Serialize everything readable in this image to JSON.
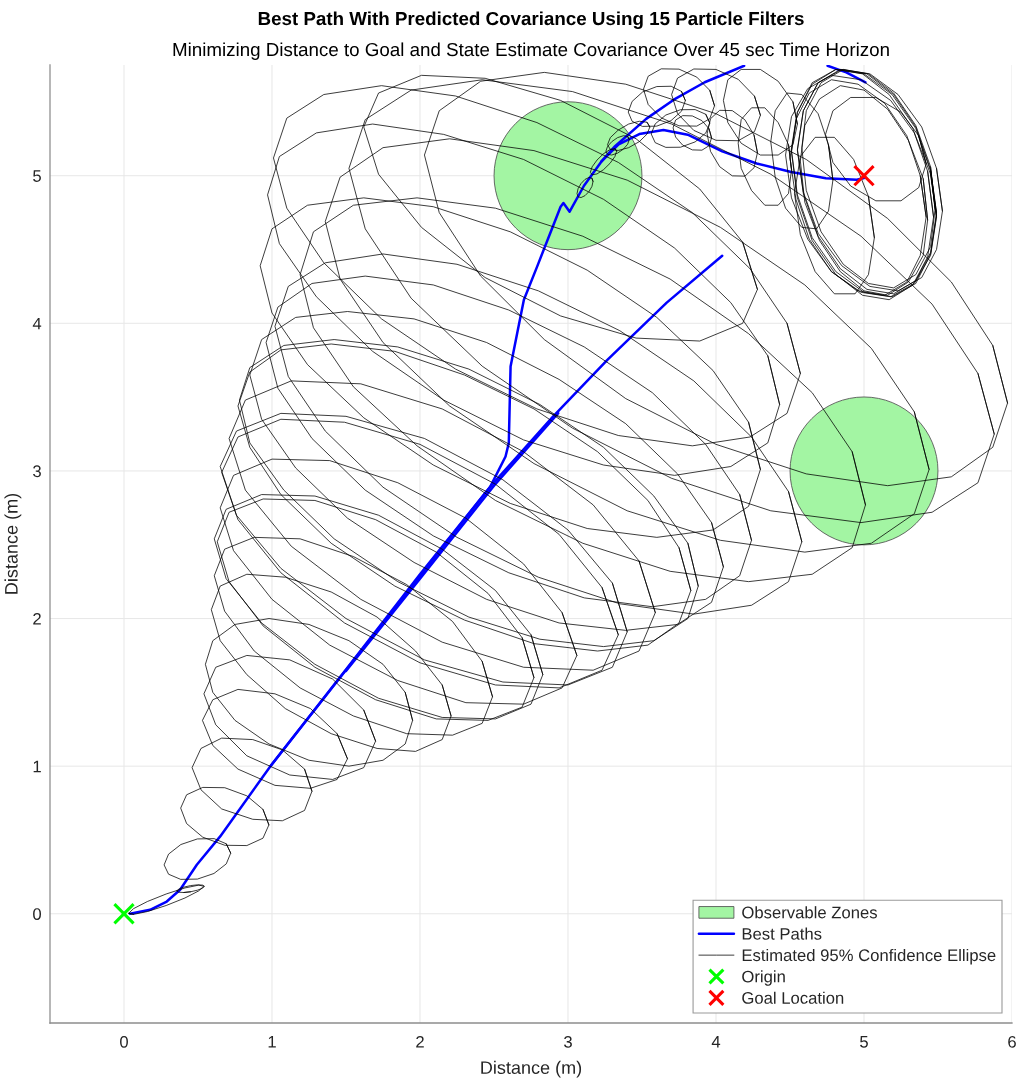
{
  "chart_data": {
    "type": "line",
    "title": "Best Path With Predicted Covariance Using 15 Particle Filters",
    "subtitle": "Minimizing Distance to Goal and State Estimate Covariance Over 45 sec Time Horizon",
    "xlabel": "Distance (m)",
    "ylabel": "Distance (m)",
    "xlim": [
      -0.5,
      6
    ],
    "ylim": [
      -0.74,
      5.75
    ],
    "xticks": [
      0,
      1,
      2,
      3,
      4,
      5,
      6
    ],
    "yticks": [
      0,
      1,
      2,
      3,
      4,
      5
    ],
    "grid": true,
    "legend": "bottom right",
    "series": [
      {
        "type": "bubble",
        "name": "Observable Zones",
        "color": "#a3f5a3",
        "x": [
          3,
          5
        ],
        "values": [
          5,
          3
        ],
        "sizes": [
          1,
          1
        ]
      },
      {
        "name": "Best Paths",
        "color": "#0000ff",
        "x": [
          0.04,
          0.176,
          0.289,
          0.379,
          0.492,
          0.65,
          0.988,
          1.5,
          2.0,
          2.476,
          2.578,
          2.6,
          2.612,
          2.657,
          2.702,
          2.792,
          2.95,
          2.969,
          3.011,
          3.108,
          3.225,
          3.342,
          3.482,
          3.645,
          3.809,
          4.042,
          4.275,
          4.508,
          4.742,
          4.952,
          5.0
        ],
        "values": [
          0.0,
          0.027,
          0.083,
          0.163,
          0.332,
          0.524,
          0.998,
          1.651,
          2.288,
          2.895,
          3.098,
          3.189,
          3.708,
          3.934,
          4.16,
          4.386,
          4.79,
          4.815,
          4.756,
          4.932,
          5.095,
          5.212,
          5.282,
          5.31,
          5.278,
          5.165,
          5.083,
          5.025,
          4.983,
          4.973,
          4.985
        ]
      },
      {
        "color": "#0000ff",
        "x": [
          3.225,
          3.318,
          3.528,
          3.715,
          3.924,
          4.19
        ],
        "values": [
          5.095,
          5.2,
          5.385,
          5.515,
          5.633,
          5.745
        ]
      },
      {
        "color": "#0000ff",
        "x": [
          4.754,
          4.88,
          5.01
        ],
        "values": [
          5.745,
          5.7,
          5.633
        ]
      },
      {
        "color": "#0000ff",
        "x": [
          0.988,
          1.5,
          2.0,
          2.476,
          2.9,
          3.266,
          3.667,
          4.042
        ],
        "values": [
          0.998,
          1.655,
          2.3,
          2.895,
          3.37,
          3.753,
          4.14,
          4.458
        ]
      },
      {
        "color": "#0000ff",
        "x": [
          1.5,
          2.0,
          2.5,
          2.934
        ],
        "values": [
          1.645,
          2.27,
          2.9,
          3.392
        ]
      },
      {
        "name": "Estimated 95% Confidence Ellipse",
        "color": "#000000",
        "x": [
          0.031,
          0.065,
          0.158,
          0.285,
          0.412,
          0.505,
          0.539,
          0.505,
          0.412,
          0.285,
          0.158,
          0.065,
          0.031,
          0.065
        ],
        "values": [
          0.003,
          -0.004,
          0.015,
          0.056,
          0.107,
          0.155,
          0.187,
          0.194,
          0.175,
          0.134,
          0.083,
          0.035,
          0.003,
          -0.004
        ]
      },
      {
        "color": "#000000",
        "x": [
          0.403,
          0.45,
          0.497,
          0.531,
          0.544,
          0.531,
          0.497,
          0.45,
          0.403,
          0.369,
          0.356,
          0.369,
          0.403,
          0.45
        ],
        "values": [
          0.144,
          0.149,
          0.16,
          0.173,
          0.186,
          0.194,
          0.196,
          0.191,
          0.18,
          0.167,
          0.154,
          0.146,
          0.144,
          0.149
        ]
      },
      {
        "color": "#000000",
        "x": [
          0.721,
          0.691,
          0.609,
          0.496,
          0.384,
          0.301,
          0.271,
          0.301,
          0.383,
          0.496,
          0.608,
          0.691,
          0.721,
          0.691
        ],
        "values": [
          0.411,
          0.474,
          0.509,
          0.507,
          0.469,
          0.404,
          0.331,
          0.268,
          0.233,
          0.235,
          0.273,
          0.338,
          0.411,
          0.474
        ]
      },
      {
        "color": "#000000",
        "x": [
          0.979,
          0.939,
          0.83,
          0.681,
          0.532,
          0.423,
          0.383,
          0.423,
          0.532,
          0.681,
          0.83,
          0.939,
          0.979,
          0.939
        ],
        "values": [
          0.602,
          0.707,
          0.799,
          0.854,
          0.856,
          0.806,
          0.716,
          0.611,
          0.519,
          0.464,
          0.462,
          0.512,
          0.602,
          0.707
        ]
      },
      {
        "color": "#000000",
        "x": [
          1.27,
          1.22,
          1.07,
          0.87,
          0.66,
          0.52,
          0.46,
          0.52,
          0.66,
          0.87,
          1.07,
          1.22,
          1.27,
          1.22
        ],
        "values": [
          0.83,
          0.98,
          1.11,
          1.18,
          1.19,
          1.12,
          0.99,
          0.84,
          0.71,
          0.64,
          0.63,
          0.7,
          0.83,
          0.98
        ]
      },
      {
        "color": "#000000",
        "x": [
          1.51,
          1.44,
          1.26,
          1.02,
          0.77,
          0.6,
          0.53,
          0.6,
          0.77,
          1.02,
          1.26,
          1.44,
          1.51,
          1.44
        ],
        "values": [
          1.05,
          1.22,
          1.39,
          1.49,
          1.52,
          1.45,
          1.31,
          1.14,
          0.98,
          0.87,
          0.85,
          0.91,
          1.05,
          1.22
        ]
      },
      {
        "color": "#000000",
        "x": [
          1.7,
          1.62,
          1.41,
          1.12,
          0.83,
          0.62,
          0.54,
          0.62,
          0.83,
          1.12,
          1.41,
          1.62,
          1.7,
          1.62
        ],
        "values": [
          1.17,
          1.38,
          1.59,
          1.72,
          1.75,
          1.67,
          1.49,
          1.28,
          1.07,
          0.94,
          0.91,
          0.99,
          1.17,
          1.38
        ]
      },
      {
        "color": "#000000",
        "x": [
          1.95,
          1.9,
          1.75,
          1.52,
          1.25,
          0.98,
          0.75,
          0.6,
          0.55,
          0.6,
          0.75,
          0.98,
          1.25,
          1.52,
          1.75,
          1.9,
          1.95,
          1.9
        ],
        "values": [
          1.31,
          1.5,
          1.69,
          1.85,
          1.96,
          2.0,
          1.96,
          1.85,
          1.69,
          1.5,
          1.31,
          1.15,
          1.04,
          1.0,
          1.04,
          1.15,
          1.31,
          1.5
        ]
      },
      {
        "color": "#000000",
        "x": [
          2.21,
          2.15,
          1.97,
          1.71,
          1.4,
          1.09,
          0.83,
          0.65,
          0.59,
          0.65,
          0.83,
          1.09,
          1.4,
          1.71,
          1.97,
          2.15,
          2.21,
          2.15
        ],
        "values": [
          1.34,
          1.55,
          1.78,
          2.01,
          2.18,
          2.28,
          2.3,
          2.22,
          2.06,
          1.85,
          1.62,
          1.39,
          1.22,
          1.12,
          1.1,
          1.18,
          1.34,
          1.55
        ]
      },
      {
        "color": "#000000",
        "x": [
          2.49,
          2.42,
          2.22,
          1.91,
          1.55,
          1.19,
          0.88,
          0.68,
          0.61,
          0.68,
          0.88,
          1.19,
          1.55,
          1.91,
          2.22,
          2.42,
          2.49,
          2.42
        ],
        "values": [
          1.47,
          1.71,
          1.98,
          2.23,
          2.42,
          2.54,
          2.55,
          2.47,
          2.29,
          2.05,
          1.78,
          1.53,
          1.34,
          1.22,
          1.21,
          1.29,
          1.47,
          1.71
        ]
      },
      {
        "color": "#000000",
        "x": [
          2.77,
          2.69,
          2.46,
          2.11,
          1.7,
          1.29,
          0.94,
          0.71,
          0.63,
          0.71,
          0.94,
          1.29,
          1.7,
          2.11,
          2.46,
          2.69,
          2.77,
          2.69
        ],
        "values": [
          1.6,
          1.87,
          2.17,
          2.45,
          2.67,
          2.8,
          2.81,
          2.72,
          2.52,
          2.25,
          1.95,
          1.67,
          1.45,
          1.32,
          1.31,
          1.4,
          1.6,
          1.87
        ]
      },
      {
        "color": "#000000",
        "x": [
          2.83,
          2.75,
          2.51,
          2.15,
          1.72,
          1.29,
          0.93,
          0.69,
          0.61,
          0.69,
          0.93,
          1.29,
          1.72,
          2.15,
          2.51,
          2.75,
          2.83,
          2.75
        ],
        "values": [
          1.62,
          1.89,
          2.19,
          2.47,
          2.7,
          2.83,
          2.84,
          2.74,
          2.54,
          2.27,
          1.97,
          1.69,
          1.46,
          1.33,
          1.32,
          1.42,
          1.62,
          1.89
        ]
      },
      {
        "color": "#000000",
        "x": [
          3.06,
          2.96,
          2.7,
          2.31,
          1.85,
          1.39,
          1.0,
          0.74,
          0.65,
          0.74,
          1.0,
          1.39,
          1.85,
          2.31,
          2.7,
          2.96,
          3.06,
          2.96
        ],
        "values": [
          1.75,
          2.04,
          2.37,
          2.68,
          2.92,
          3.07,
          3.08,
          2.97,
          2.75,
          2.46,
          2.13,
          1.82,
          1.58,
          1.43,
          1.42,
          1.53,
          1.75,
          2.04
        ]
      },
      {
        "color": "#000000",
        "x": [
          3.34,
          3.23,
          2.94,
          2.51,
          2.0,
          1.49,
          1.06,
          0.77,
          0.66,
          0.77,
          1.06,
          1.49,
          2.0,
          2.51,
          2.94,
          3.23,
          3.34,
          3.23
        ],
        "values": [
          1.89,
          2.21,
          2.57,
          2.91,
          3.18,
          3.33,
          3.35,
          3.23,
          2.99,
          2.67,
          2.31,
          1.97,
          1.7,
          1.55,
          1.53,
          1.65,
          1.89,
          2.21
        ]
      },
      {
        "color": "#000000",
        "x": [
          3.4,
          3.3,
          3.0,
          2.56,
          2.03,
          1.5,
          1.06,
          0.76,
          0.65,
          0.76,
          1.06,
          1.5,
          2.03,
          2.56,
          3.0,
          3.3,
          3.4,
          3.3
        ],
        "values": [
          1.91,
          2.24,
          2.6,
          2.94,
          3.22,
          3.37,
          3.39,
          3.27,
          3.03,
          2.7,
          2.34,
          2.0,
          1.72,
          1.57,
          1.55,
          1.67,
          1.91,
          2.24
        ]
      },
      {
        "color": "#000000",
        "x": [
          3.59,
          3.48,
          3.17,
          2.7,
          2.15,
          1.6,
          1.13,
          0.82,
          0.71,
          0.82,
          1.13,
          1.6,
          2.15,
          2.7,
          3.17,
          3.48,
          3.59,
          3.48
        ],
        "values": [
          2.04,
          2.39,
          2.77,
          3.13,
          3.42,
          3.59,
          3.61,
          3.48,
          3.22,
          2.87,
          2.49,
          2.13,
          1.84,
          1.67,
          1.65,
          1.78,
          2.04,
          2.39
        ]
      },
      {
        "color": "#000000",
        "x": [
          3.83,
          3.75,
          3.54,
          3.2,
          2.77,
          2.3,
          1.83,
          1.4,
          1.06,
          0.85,
          0.77,
          0.85,
          1.06,
          1.4,
          1.83,
          2.3,
          2.77,
          3.2,
          3.54,
          3.75,
          3.83,
          3.75
        ],
        "values": [
          2.19,
          2.48,
          2.8,
          3.13,
          3.42,
          3.65,
          3.81,
          3.86,
          3.82,
          3.67,
          3.44,
          3.16,
          2.84,
          2.51,
          2.22,
          1.99,
          1.83,
          1.78,
          1.82,
          1.97,
          2.19,
          2.48
        ]
      },
      {
        "color": "#000000",
        "x": [
          3.88,
          3.81,
          3.58,
          3.24,
          2.81,
          2.33,
          1.85,
          1.42,
          1.08,
          0.85,
          0.78,
          0.85,
          1.08,
          1.42,
          1.85,
          2.33,
          2.81,
          3.24,
          3.58,
          3.81,
          3.88,
          3.81
        ],
        "values": [
          2.22,
          2.51,
          2.83,
          3.16,
          3.45,
          3.69,
          3.84,
          3.89,
          3.85,
          3.7,
          3.48,
          3.19,
          2.87,
          2.54,
          2.25,
          2.01,
          1.86,
          1.81,
          1.85,
          2.0,
          2.22,
          2.51
        ]
      },
      {
        "color": "#000000",
        "x": [
          4.05,
          3.97,
          3.74,
          3.39,
          2.94,
          2.45,
          1.96,
          1.51,
          1.16,
          0.93,
          0.85,
          0.93,
          1.16,
          1.51,
          1.96,
          2.45,
          2.94,
          3.39,
          3.74,
          3.97,
          4.05,
          3.97
        ],
        "values": [
          2.35,
          2.65,
          2.98,
          3.32,
          3.62,
          3.87,
          4.03,
          4.08,
          4.04,
          3.89,
          3.65,
          3.35,
          3.02,
          2.68,
          2.38,
          2.13,
          1.97,
          1.92,
          1.96,
          2.11,
          2.35,
          2.65
        ]
      },
      {
        "color": "#000000",
        "x": [
          4.24,
          4.16,
          3.93,
          3.57,
          3.11,
          2.6,
          2.09,
          1.63,
          1.27,
          1.04,
          0.96,
          1.04,
          1.27,
          1.63,
          2.09,
          2.6,
          3.11,
          3.57,
          3.93,
          4.16,
          4.24,
          4.16
        ],
        "values": [
          2.53,
          2.84,
          3.18,
          3.53,
          3.84,
          4.09,
          4.26,
          4.32,
          4.27,
          4.11,
          3.87,
          3.56,
          3.22,
          2.87,
          2.56,
          2.31,
          2.14,
          2.08,
          2.13,
          2.29,
          2.53,
          2.84
        ]
      },
      {
        "color": "#000000",
        "x": [
          4.3,
          4.22,
          3.98,
          3.6,
          3.13,
          2.61,
          2.09,
          1.62,
          1.24,
          1.0,
          0.92,
          1.0,
          1.24,
          1.62,
          2.09,
          2.61,
          3.13,
          3.6,
          3.98,
          4.22,
          4.3,
          4.22
        ],
        "values": [
          3.01,
          3.33,
          3.68,
          4.04,
          4.36,
          4.62,
          4.79,
          4.85,
          4.8,
          4.64,
          4.39,
          4.07,
          3.72,
          3.36,
          3.04,
          2.78,
          2.61,
          2.55,
          2.6,
          2.76,
          3.01,
          3.33
        ]
      },
      {
        "color": "#000000",
        "x": [
          4.43,
          4.35,
          4.1,
          3.72,
          3.24,
          2.7,
          2.16,
          1.68,
          1.3,
          1.05,
          0.97,
          1.05,
          1.3,
          1.68,
          2.16,
          2.7,
          3.24,
          3.72,
          4.1,
          4.35,
          4.43,
          4.35
        ],
        "values": [
          3.45,
          3.78,
          4.14,
          4.51,
          4.84,
          5.11,
          5.28,
          5.35,
          5.29,
          5.13,
          4.87,
          4.54,
          4.18,
          3.81,
          3.48,
          3.21,
          3.04,
          2.97,
          3.03,
          3.19,
          3.45,
          3.78
        ]
      },
      {
        "color": "#000000",
        "x": [
          4.57,
          4.48,
          4.23,
          3.84,
          3.34,
          2.79,
          2.24,
          1.74,
          1.35,
          1.1,
          1.01,
          1.1,
          1.35,
          1.74,
          2.24,
          2.79,
          3.34,
          3.84,
          4.23,
          4.48,
          4.57,
          4.48
        ],
        "values": [
          3.66,
          4.0,
          4.37,
          4.75,
          5.09,
          5.36,
          5.54,
          5.61,
          5.55,
          5.39,
          5.12,
          4.78,
          4.41,
          4.03,
          3.69,
          3.42,
          3.24,
          3.17,
          3.23,
          3.39,
          3.66,
          4.0
        ]
      },
      {
        "color": "#000000",
        "x": [
          4.28,
          4.18,
          3.89,
          3.46,
          2.95,
          2.44,
          2.01,
          1.72,
          1.62,
          1.72,
          2.01,
          2.44,
          2.95,
          3.46,
          3.89,
          4.18,
          4.28,
          4.18
        ],
        "values": [
          4.23,
          4.55,
          4.91,
          5.25,
          5.51,
          5.66,
          5.68,
          5.56,
          5.33,
          5.01,
          4.65,
          4.31,
          4.05,
          3.9,
          3.88,
          4.0,
          4.23,
          4.55
        ]
      },
      {
        "color": "#000000",
        "x": [
          4.58,
          4.49,
          4.24,
          3.85,
          3.35,
          2.8,
          2.25,
          1.75,
          1.36,
          1.11,
          1.02,
          1.11,
          1.36,
          1.75,
          2.25,
          2.8,
          3.35,
          3.85,
          4.24,
          4.49,
          4.58,
          4.49
        ],
        "values": [
          2.52,
          2.86,
          3.23,
          3.61,
          3.95,
          4.22,
          4.4,
          4.47,
          4.41,
          4.25,
          3.98,
          3.64,
          3.27,
          2.89,
          2.55,
          2.28,
          2.1,
          2.03,
          2.09,
          2.25,
          2.52,
          2.86
        ]
      },
      {
        "color": "#000000",
        "x": [
          5.01,
          4.92,
          4.65,
          4.22,
          3.69,
          3.1,
          2.51,
          1.98,
          1.55,
          1.28,
          1.19,
          1.28,
          1.55,
          1.98,
          2.51,
          3.1,
          3.69,
          4.22,
          4.65,
          4.92,
          5.01,
          4.92
        ],
        "values": [
          2.77,
          3.13,
          3.53,
          3.93,
          4.3,
          4.59,
          4.78,
          4.85,
          4.8,
          4.62,
          4.33,
          3.97,
          3.57,
          3.17,
          2.8,
          2.51,
          2.32,
          2.25,
          2.3,
          2.48,
          2.77,
          3.13
        ]
      },
      {
        "color": "#000000",
        "x": [
          5.44,
          5.34,
          5.05,
          4.6,
          4.03,
          3.4,
          2.77,
          2.2,
          1.75,
          1.46,
          1.36,
          1.46,
          1.75,
          2.2,
          2.77,
          3.4,
          4.03,
          4.6,
          5.05,
          5.34,
          5.44,
          5.34
        ],
        "values": [
          3.01,
          3.4,
          3.83,
          4.26,
          4.65,
          4.97,
          5.17,
          5.25,
          5.19,
          4.99,
          4.69,
          4.3,
          3.87,
          3.44,
          3.05,
          2.73,
          2.53,
          2.45,
          2.51,
          2.71,
          3.01,
          3.4
        ]
      },
      {
        "color": "#000000",
        "x": [
          5.88,
          5.77,
          5.46,
          4.98,
          4.37,
          3.7,
          3.03,
          2.42,
          1.94,
          1.63,
          1.52,
          1.63,
          1.94,
          2.42,
          3.03,
          3.7,
          4.37,
          4.98,
          5.46,
          5.77,
          5.88,
          5.77
        ],
        "values": [
          3.25,
          3.66,
          4.13,
          4.59,
          5.01,
          5.35,
          5.57,
          5.65,
          5.58,
          5.38,
          5.05,
          4.64,
          4.17,
          3.71,
          3.29,
          2.95,
          2.73,
          2.65,
          2.72,
          2.92,
          3.25,
          3.66
        ]
      },
      {
        "color": "#000000",
        "x": [
          5.97,
          5.87,
          5.59,
          5.16,
          4.61,
          4.0,
          3.39,
          2.84,
          2.41,
          2.13,
          2.03,
          2.13,
          2.41,
          2.84,
          3.39,
          4.0,
          4.61,
          5.16,
          5.59,
          5.87,
          5.97,
          5.87
        ],
        "values": [
          3.46,
          3.85,
          4.28,
          4.71,
          5.11,
          5.42,
          5.62,
          5.7,
          5.64,
          5.44,
          5.14,
          4.75,
          4.32,
          3.89,
          3.49,
          3.18,
          2.98,
          2.9,
          2.96,
          3.16,
          3.46,
          3.85
        ]
      },
      {
        "color": "#000000",
        "x": [
          3.169,
          3.162,
          3.142,
          3.115,
          3.088,
          3.068,
          3.061,
          3.068,
          3.088,
          3.115,
          3.142,
          3.162,
          3.169,
          3.162
        ],
        "values": [
          4.961,
          4.983,
          4.988,
          4.975,
          4.947,
          4.912,
          4.879,
          4.857,
          4.852,
          4.865,
          4.893,
          4.928,
          4.961,
          4.983
        ]
      },
      {
        "color": "#000000",
        "x": [
          3.329,
          3.317,
          3.285,
          3.24,
          3.196,
          3.163,
          3.151,
          3.163,
          3.196,
          3.24,
          3.284,
          3.317,
          3.329,
          3.317
        ],
        "values": [
          5.167,
          5.184,
          5.178,
          5.149,
          5.106,
          5.06,
          5.023,
          5.006,
          5.012,
          5.041,
          5.084,
          5.13,
          5.167,
          5.184
        ]
      },
      {
        "color": "#000000",
        "x": [
          3.414,
          3.403,
          3.375,
          3.335,
          3.296,
          3.267,
          3.256,
          3.267,
          3.295,
          3.335,
          3.374,
          3.403,
          3.414,
          3.403
        ],
        "values": [
          5.245,
          5.266,
          5.271,
          5.258,
          5.231,
          5.198,
          5.166,
          5.145,
          5.14,
          5.153,
          5.18,
          5.213,
          5.245,
          5.266
        ]
      },
      {
        "color": "#000000",
        "x": [
          3.553,
          3.534,
          3.482,
          3.41,
          3.339,
          3.286,
          3.267,
          3.286,
          3.339,
          3.41,
          3.482,
          3.534,
          3.553,
          3.534
        ],
        "values": [
          5.33,
          5.362,
          5.369,
          5.35,
          5.309,
          5.258,
          5.21,
          5.178,
          5.171,
          5.19,
          5.231,
          5.282,
          5.33,
          5.362
        ]
      },
      {
        "color": "#000000",
        "x": [
          3.793,
          3.767,
          3.697,
          3.6,
          3.504,
          3.433,
          3.407,
          3.433,
          3.503,
          3.6,
          3.696,
          3.767,
          3.793,
          3.767
        ],
        "values": [
          5.509,
          5.571,
          5.606,
          5.604,
          5.567,
          5.503,
          5.431,
          5.369,
          5.334,
          5.336,
          5.373,
          5.437,
          5.509,
          5.571
        ]
      },
      {
        "color": "#000000",
        "x": [
          3.958,
          3.931,
          3.859,
          3.76,
          3.661,
          3.589,
          3.562,
          3.589,
          3.661,
          3.76,
          3.859,
          3.931,
          3.958,
          3.931
        ],
        "values": [
          5.357,
          5.416,
          5.448,
          5.447,
          5.411,
          5.351,
          5.283,
          5.224,
          5.192,
          5.193,
          5.229,
          5.289,
          5.357,
          5.416
        ]
      },
      {
        "color": "#000000",
        "x": [
          3.97,
          3.953,
          3.905,
          3.84,
          3.775,
          3.727,
          3.71,
          3.727,
          3.775,
          3.84,
          3.905,
          3.953,
          3.97,
          3.953
        ],
        "values": [
          5.256,
          5.318,
          5.373,
          5.405,
          5.407,
          5.377,
          5.324,
          5.262,
          5.207,
          5.175,
          5.173,
          5.203,
          5.256,
          5.318
        ]
      },
      {
        "color": "#000000",
        "x": [
          4.28,
          4.257,
          4.195,
          4.11,
          4.025,
          3.963,
          3.94,
          3.963,
          4.025,
          4.11,
          4.195,
          4.257,
          4.28,
          4.257
        ],
        "values": [
          5.156,
          5.275,
          5.379,
          5.441,
          5.443,
          5.386,
          5.284,
          5.165,
          5.061,
          4.999,
          4.997,
          5.054,
          5.156,
          5.275
        ]
      },
      {
        "color": "#000000",
        "x": [
          4.51,
          4.49,
          4.42,
          4.33,
          4.24,
          4.17,
          4.15,
          4.17,
          4.24,
          4.33,
          4.42,
          4.49,
          4.51,
          4.49
        ],
        "values": [
          5.04,
          5.21,
          5.36,
          5.46,
          5.46,
          5.38,
          5.22,
          5.05,
          4.9,
          4.8,
          4.8,
          4.88,
          5.04,
          5.21
        ]
      },
      {
        "color": "#000000",
        "x": [
          4.79,
          4.76,
          4.69,
          4.58,
          4.48,
          4.4,
          4.37,
          4.4,
          4.47,
          4.58,
          4.68,
          4.76,
          4.79,
          4.76
        ],
        "values": [
          4.97,
          5.21,
          5.42,
          5.55,
          5.56,
          5.44,
          5.23,
          4.99,
          4.78,
          4.65,
          4.64,
          4.76,
          4.97,
          5.21
        ]
      },
      {
        "color": "#000000",
        "x": [
          4.3,
          4.26,
          4.15,
          4.0,
          3.85,
          3.74,
          3.7,
          3.74,
          3.85,
          4.0,
          4.15,
          4.26,
          4.3,
          4.26
        ],
        "values": [
          5.41,
          5.539,
          5.653,
          5.72,
          5.723,
          5.661,
          5.55,
          5.421,
          5.307,
          5.24,
          5.237,
          5.299,
          5.41,
          5.539
        ]
      },
      {
        "color": "#000000",
        "x": [
          3.99,
          3.958,
          3.87,
          3.75,
          3.63,
          3.542,
          3.51,
          3.542,
          3.63,
          3.75,
          3.87,
          3.958,
          3.99,
          3.958
        ],
        "values": [
          5.474,
          5.578,
          5.668,
          5.722,
          5.724,
          5.674,
          5.586,
          5.482,
          5.392,
          5.338,
          5.336,
          5.386,
          5.474,
          5.578
        ]
      },
      {
        "color": "#000000",
        "x": [
          4.55,
          4.52,
          4.42,
          4.3,
          4.17,
          4.08,
          4.05,
          4.08,
          4.17,
          4.3,
          4.42,
          4.52,
          4.55,
          4.52
        ],
        "values": [
          5.35,
          5.5,
          5.64,
          5.72,
          5.72,
          5.65,
          5.51,
          5.36,
          5.22,
          5.14,
          5.14,
          5.21,
          5.35,
          5.5
        ]
      },
      {
        "color": "#000000",
        "x": [
          5.49,
          5.45,
          5.35,
          5.19,
          5.0,
          4.81,
          4.65,
          4.55,
          4.51,
          4.55,
          4.65,
          4.81,
          5.0,
          5.19,
          5.35,
          5.45,
          5.49,
          5.45
        ],
        "values": [
          4.73,
          5.03,
          5.32,
          5.55,
          5.69,
          5.72,
          5.63,
          5.43,
          5.17,
          4.87,
          4.58,
          4.35,
          4.21,
          4.18,
          4.27,
          4.47,
          4.73,
          5.03
        ]
      },
      {
        "color": "#000000",
        "x": [
          5.49,
          5.45,
          5.35,
          5.2,
          5.02,
          4.84,
          4.69,
          4.59,
          4.55,
          4.59,
          4.69,
          4.84,
          5.02,
          5.2,
          5.35,
          5.45,
          5.49,
          5.45
        ],
        "values": [
          4.75,
          5.04,
          5.33,
          5.55,
          5.69,
          5.72,
          5.63,
          5.44,
          5.17,
          4.88,
          4.59,
          4.37,
          4.23,
          4.2,
          4.29,
          4.48,
          4.75,
          5.04
        ]
      },
      {
        "color": "#000000",
        "x": [
          5.49,
          5.45,
          5.34,
          5.18,
          4.98,
          4.78,
          4.62,
          4.51,
          4.47,
          4.51,
          4.62,
          4.78,
          4.98,
          5.18,
          5.34,
          5.45,
          5.49,
          5.45
        ],
        "values": [
          4.72,
          5.01,
          5.29,
          5.51,
          5.65,
          5.68,
          5.59,
          5.4,
          5.14,
          4.85,
          4.57,
          4.35,
          4.21,
          4.18,
          4.27,
          4.46,
          4.72,
          5.01
        ]
      },
      {
        "color": "#000000",
        "x": [
          5.48,
          5.45,
          5.35,
          5.2,
          5.03,
          4.86,
          4.71,
          4.61,
          4.58,
          4.61,
          4.71,
          4.86,
          5.03,
          5.2,
          5.35,
          5.45,
          5.48,
          5.45
        ],
        "values": [
          4.77,
          5.06,
          5.34,
          5.56,
          5.69,
          5.72,
          5.63,
          5.44,
          5.19,
          4.9,
          4.62,
          4.4,
          4.27,
          4.24,
          4.33,
          4.52,
          4.77,
          5.06
        ]
      },
      {
        "color": "#000000",
        "x": [
          5.47,
          5.43,
          5.33,
          5.17,
          4.99,
          4.81,
          4.65,
          4.55,
          4.51,
          4.55,
          4.65,
          4.81,
          4.99,
          5.17,
          5.33,
          5.43,
          5.47,
          5.43
        ],
        "values": [
          4.72,
          5.03,
          5.32,
          5.55,
          5.69,
          5.72,
          5.62,
          5.43,
          5.16,
          4.85,
          4.56,
          4.33,
          4.19,
          4.16,
          4.26,
          4.45,
          4.72,
          5.03
        ]
      },
      {
        "color": "#000000",
        "x": [
          5.42,
          5.38,
          5.29,
          5.14,
          4.96,
          4.78,
          4.63,
          4.54,
          4.5,
          4.54,
          4.63,
          4.78,
          4.96,
          5.14,
          5.29,
          5.38,
          5.42,
          5.38
        ],
        "values": [
          4.72,
          5.0,
          5.27,
          5.49,
          5.62,
          5.65,
          5.56,
          5.38,
          5.12,
          4.84,
          4.57,
          4.35,
          4.22,
          4.19,
          4.28,
          4.46,
          4.72,
          5.0
        ]
      },
      {
        "color": "#000000",
        "x": [
          5.53,
          5.49,
          5.39,
          5.23,
          5.04,
          4.85,
          4.69,
          4.59,
          4.55,
          4.59,
          4.69,
          4.85,
          5.04,
          5.23,
          5.39,
          5.49,
          5.53,
          5.49
        ],
        "values": [
          4.76,
          5.05,
          5.33,
          5.55,
          5.69,
          5.72,
          5.63,
          5.44,
          5.18,
          4.89,
          4.61,
          4.39,
          4.25,
          4.22,
          4.31,
          4.5,
          4.76,
          5.05
        ]
      },
      {
        "color": "#000000",
        "x": [
          5.43,
          5.4,
          5.3,
          5.16,
          5.0,
          4.84,
          4.7,
          4.6,
          4.57,
          4.6,
          4.7,
          4.84,
          5.0,
          5.16,
          5.3,
          5.4,
          5.43,
          5.4
        ],
        "values": [
          4.7,
          4.98,
          5.24,
          5.45,
          5.58,
          5.61,
          5.52,
          5.34,
          5.1,
          4.82,
          4.56,
          4.35,
          4.22,
          4.19,
          4.28,
          4.46,
          4.7,
          4.98
        ]
      },
      {
        "color": "#000000",
        "x": [
          5.42,
          5.37,
          5.25,
          5.08,
          4.91,
          4.79,
          4.74,
          4.79,
          4.91,
          5.08,
          5.25,
          5.37,
          5.42,
          5.37
        ],
        "values": [
          5.08,
          5.27,
          5.43,
          5.53,
          5.53,
          5.44,
          5.28,
          5.09,
          4.93,
          4.83,
          4.83,
          4.92,
          5.08,
          5.27
        ]
      },
      {
        "color": "#000000",
        "x": [
          5.07,
          5.03,
          4.93,
          4.8,
          4.67,
          4.57,
          4.53,
          4.57,
          4.67,
          4.8,
          4.94,
          5.03,
          5.07,
          5.03
        ],
        "values": [
          4.58,
          4.86,
          5.11,
          5.26,
          5.26,
          5.13,
          4.88,
          4.6,
          4.35,
          4.2,
          4.2,
          4.33,
          4.58,
          4.86
        ]
      },
      {
        "type": "scatter",
        "name": "Origin",
        "color": "#00ff00",
        "marker": "cross",
        "x": [
          0
        ],
        "values": [
          0
        ]
      },
      {
        "type": "scatter",
        "name": "Goal Location",
        "color": "#ff0000",
        "marker": "cross",
        "x": [
          5
        ],
        "values": [
          5
        ]
      }
    ]
  }
}
